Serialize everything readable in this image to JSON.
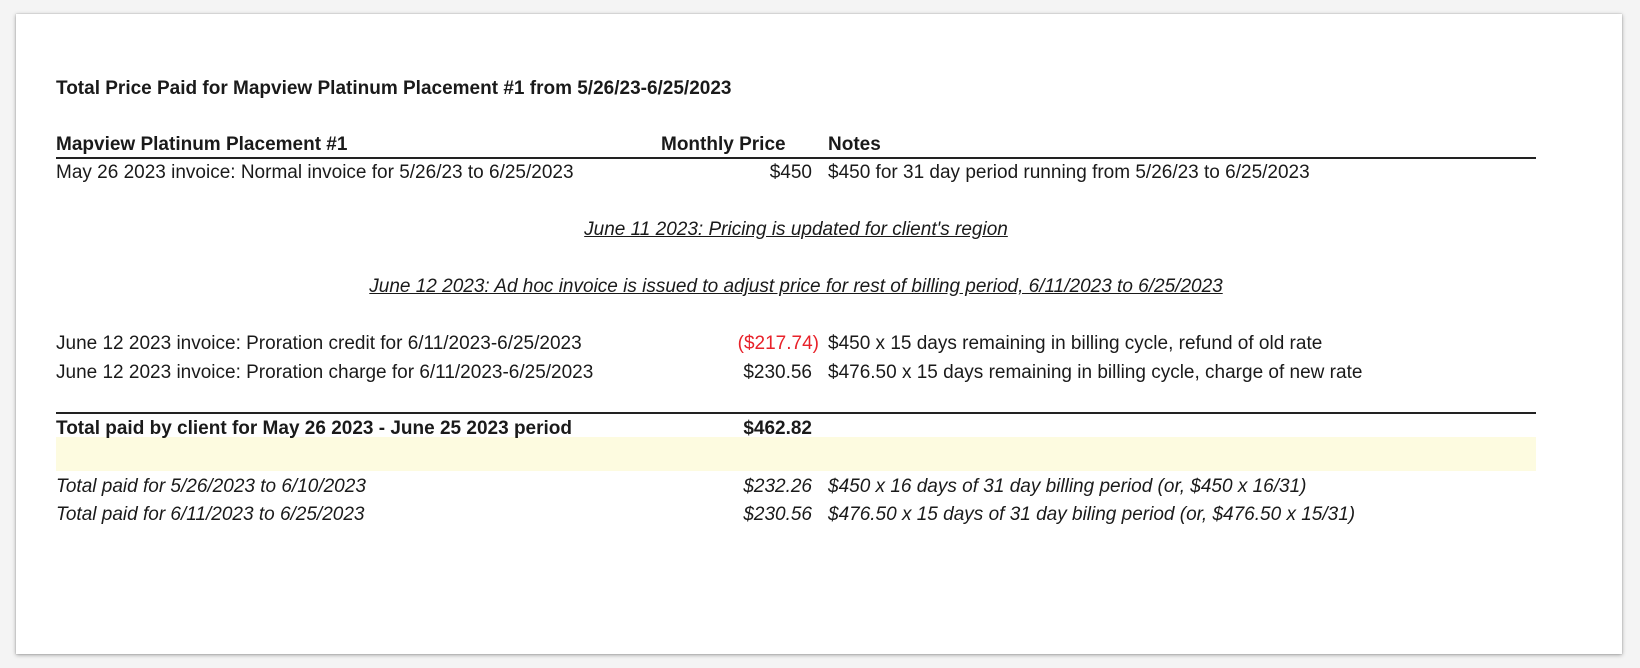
{
  "title": "Total Price Paid for Mapview Platinum Placement #1 from 5/26/23-6/25/2023",
  "header": {
    "item": "Mapview Platinum Placement #1",
    "price": "Monthly Price",
    "notes": "Notes"
  },
  "rows": [
    {
      "description": "May 26 2023 invoice: Normal invoice for 5/26/23 to 6/25/2023",
      "price": "$450",
      "notes": "$450 for 31 day period running from 5/26/23 to 6/25/2023"
    }
  ],
  "events": [
    "June 11 2023: Pricing is updated for client's region",
    "June 12 2023: Ad hoc invoice is issued to adjust price for rest of billing period, 6/11/2023 to 6/25/2023"
  ],
  "proration": [
    {
      "description": "June 12 2023 invoice: Proration credit for 6/11/2023-6/25/2023",
      "price": "($217.74)",
      "notes": "$450 x 15 days remaining in billing cycle, refund of old rate"
    },
    {
      "description": "June 12 2023 invoice: Proration charge for 6/11/2023-6/25/2023",
      "price": "$230.56",
      "notes": "$476.50 x 15 days remaining in billing cycle, charge of new rate"
    }
  ],
  "total": {
    "label": "Total paid by client for May 26 2023 - June 25 2023 period",
    "value": "$462.82"
  },
  "breakdown": [
    {
      "description": "Total paid for 5/26/2023 to 6/10/2023",
      "price": "$232.26",
      "notes": "$450 x 16 days of 31 day billing period (or, $450 x 16/31)"
    },
    {
      "description": "Total paid for 6/11/2023 to 6/25/2023",
      "price": "$230.56",
      "notes": "$476.50 x 15 days of 31 day biling period (or, $476.50 x 15/31)"
    }
  ],
  "colors": {
    "negative": "#e8222a",
    "total_highlight": "#fdfbe0"
  }
}
